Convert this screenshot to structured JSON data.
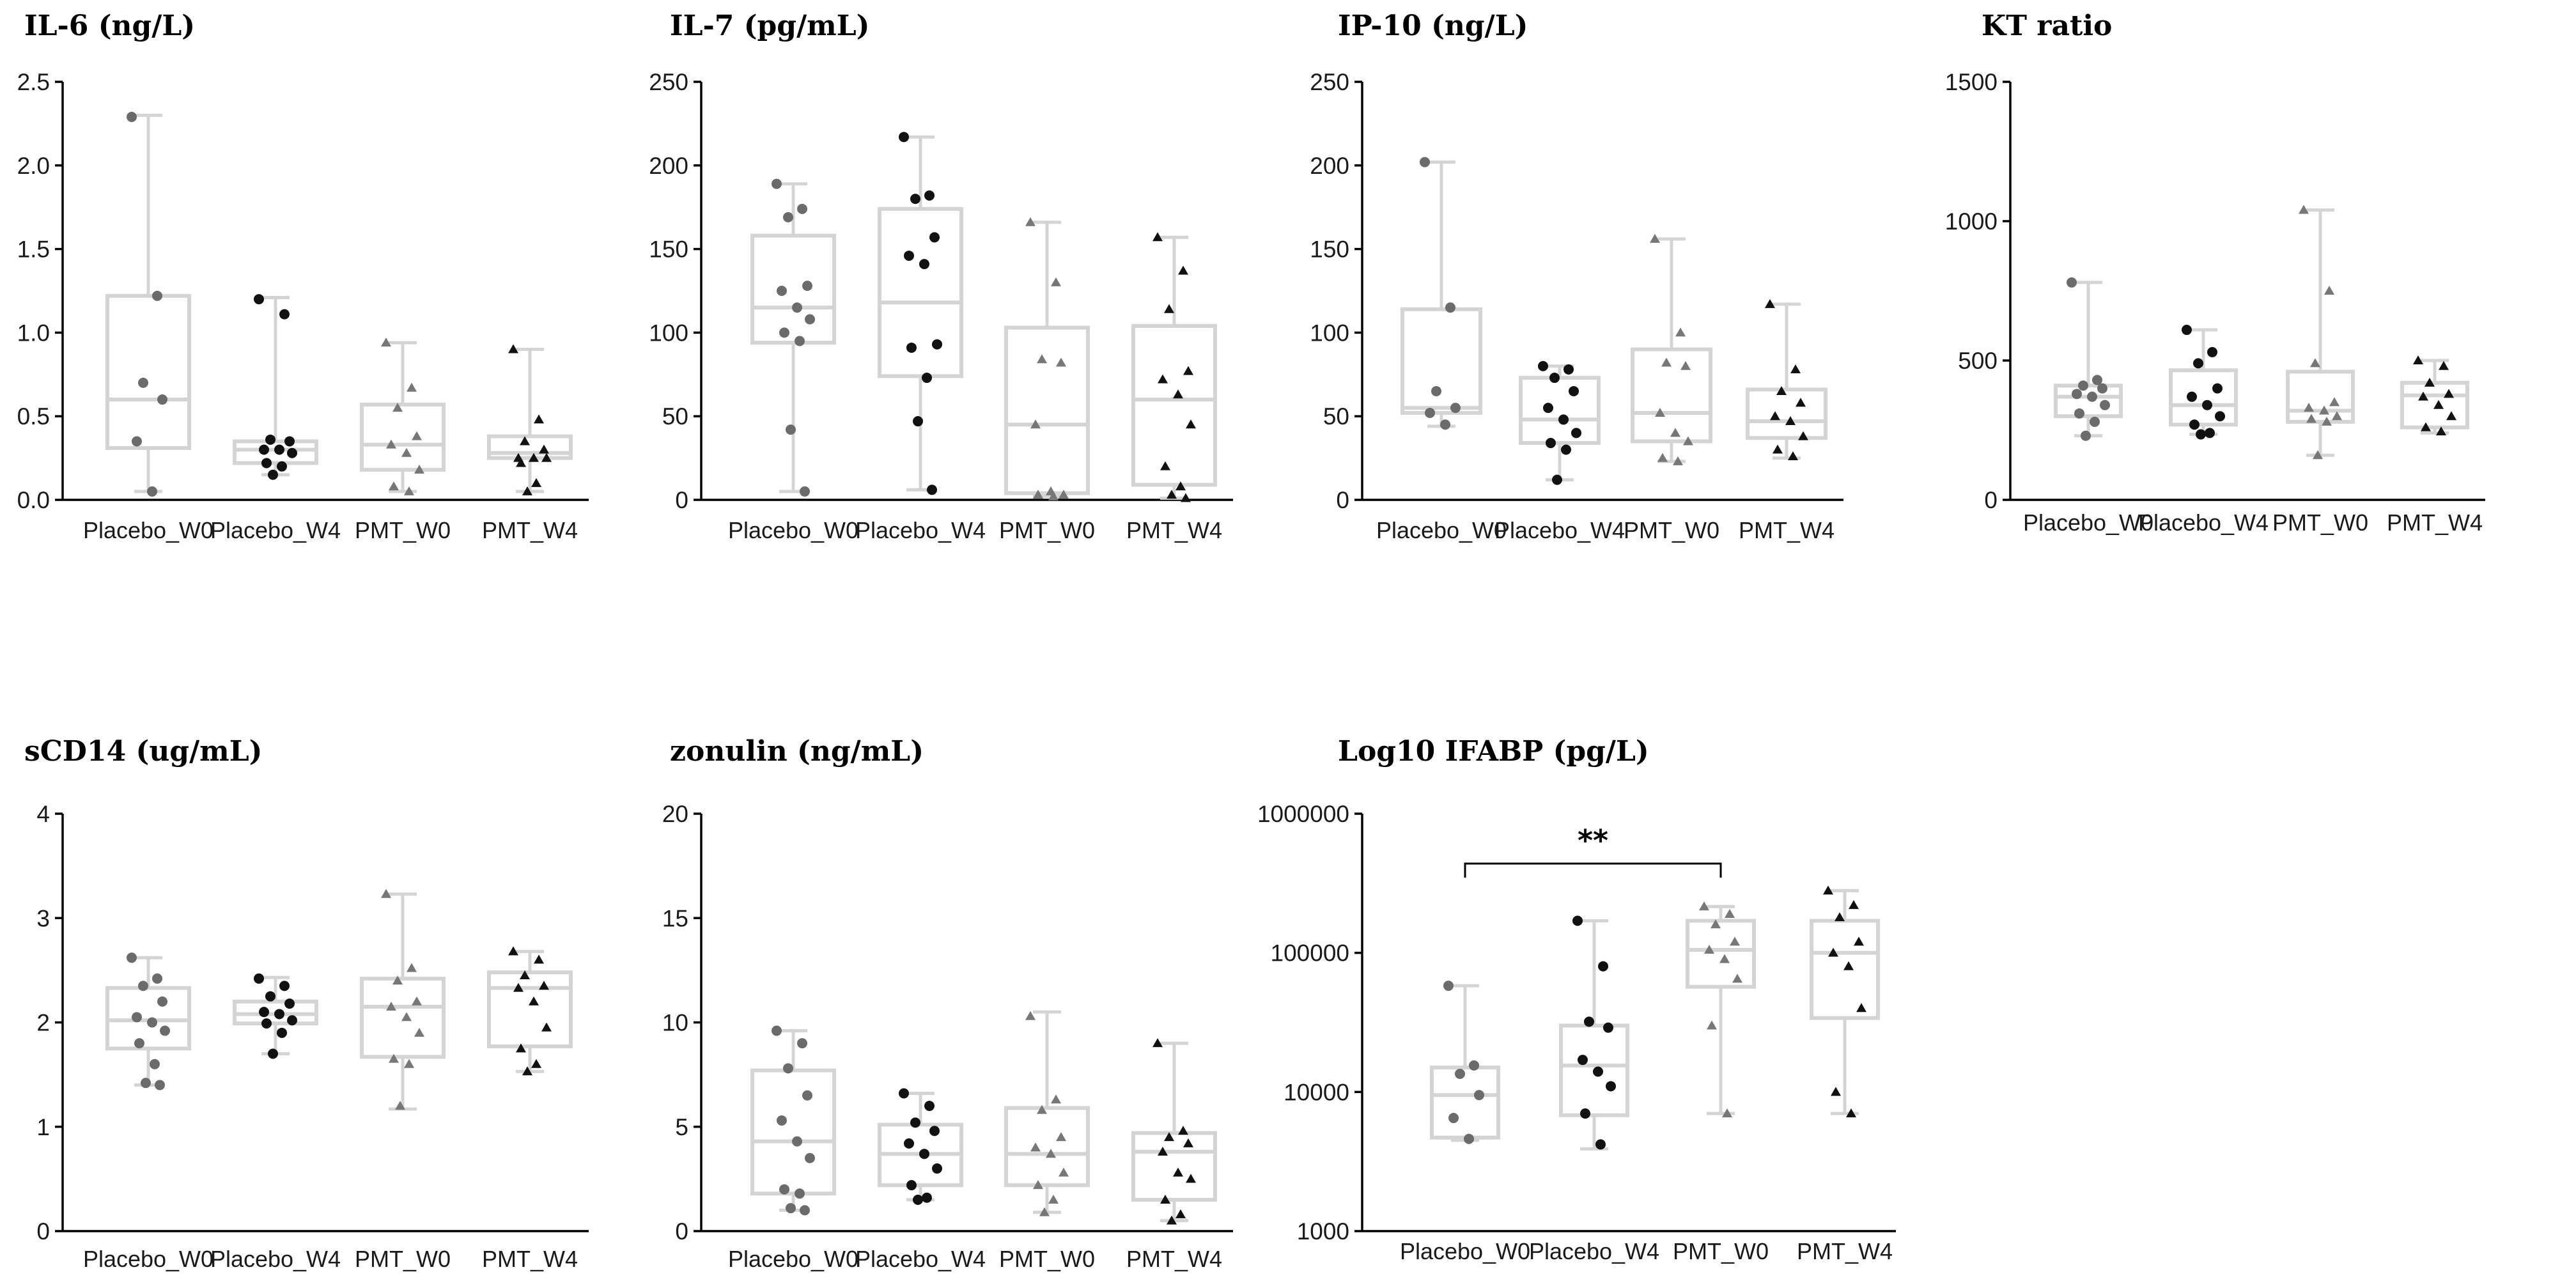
{
  "chart_data": [
    {
      "type": "box",
      "title": "IL-6 (ng/L)",
      "categories": [
        "Placebo_W0",
        "Placebo_W4",
        "PMT_W0",
        "PMT_W4"
      ],
      "yscale": "linear",
      "ylim": [
        0,
        2.5
      ],
      "yticks": [
        0,
        0.5,
        1.0,
        1.5,
        2.0,
        2.5
      ],
      "ytick_labels": [
        "0.0",
        "0.5",
        "1.0",
        "1.5",
        "2.0",
        "2.5"
      ],
      "groups": [
        {
          "category": "Placebo_W0",
          "marker": "circle",
          "color": "#6b6b6b",
          "min": 0.05,
          "q1": 0.31,
          "median": 0.6,
          "q3": 1.22,
          "max": 2.3,
          "points": [
            2.29,
            1.22,
            0.7,
            0.6,
            0.35,
            0.05
          ]
        },
        {
          "category": "Placebo_W4",
          "marker": "circle",
          "color": "#111111",
          "min": 0.15,
          "q1": 0.22,
          "median": 0.3,
          "q3": 0.35,
          "max": 1.21,
          "points": [
            1.2,
            1.11,
            0.36,
            0.35,
            0.3,
            0.3,
            0.28,
            0.22,
            0.2,
            0.15
          ]
        },
        {
          "category": "PMT_W0",
          "marker": "triangle",
          "color": "#777777",
          "min": 0.05,
          "q1": 0.18,
          "median": 0.33,
          "q3": 0.57,
          "max": 0.94,
          "points": [
            0.94,
            0.67,
            0.55,
            0.38,
            0.33,
            0.28,
            0.18,
            0.08,
            0.05
          ]
        },
        {
          "category": "PMT_W4",
          "marker": "triangle",
          "color": "#111111",
          "min": 0.05,
          "q1": 0.25,
          "median": 0.28,
          "q3": 0.38,
          "max": 0.9,
          "points": [
            0.9,
            0.48,
            0.35,
            0.3,
            0.25,
            0.25,
            0.25,
            0.22,
            0.1,
            0.05
          ]
        }
      ]
    },
    {
      "type": "box",
      "title": "IL-7 (pg/mL)",
      "categories": [
        "Placebo_W0",
        "Placebo_W4",
        "PMT_W0",
        "PMT_W4"
      ],
      "yscale": "linear",
      "ylim": [
        0,
        250
      ],
      "yticks": [
        0,
        50,
        100,
        150,
        200,
        250
      ],
      "ytick_labels": [
        "0",
        "50",
        "100",
        "150",
        "200",
        "250"
      ],
      "groups": [
        {
          "category": "Placebo_W0",
          "marker": "circle",
          "color": "#6b6b6b",
          "min": 5,
          "q1": 94,
          "median": 115,
          "q3": 158,
          "max": 189,
          "points": [
            189,
            174,
            169,
            128,
            125,
            115,
            108,
            100,
            95,
            42,
            5
          ]
        },
        {
          "category": "Placebo_W4",
          "marker": "circle",
          "color": "#111111",
          "min": 6,
          "q1": 74,
          "median": 118,
          "q3": 174,
          "max": 217,
          "points": [
            217,
            182,
            180,
            157,
            146,
            141,
            93,
            91,
            73,
            47,
            6
          ]
        },
        {
          "category": "PMT_W0",
          "marker": "triangle",
          "color": "#777777",
          "min": 2,
          "q1": 4,
          "median": 45,
          "q3": 103,
          "max": 166,
          "points": [
            166,
            130,
            84,
            82,
            45,
            5,
            3,
            3,
            2
          ]
        },
        {
          "category": "PMT_W4",
          "marker": "triangle",
          "color": "#111111",
          "min": 1,
          "q1": 9,
          "median": 60,
          "q3": 104,
          "max": 157,
          "points": [
            157,
            137,
            114,
            77,
            72,
            63,
            45,
            20,
            8,
            3,
            1
          ]
        }
      ]
    },
    {
      "type": "box",
      "title": "IP-10 (ng/L)",
      "categories": [
        "Placebo_W0",
        "Placebo_W4",
        "PMT_W0",
        "PMT_W4"
      ],
      "yscale": "linear",
      "ylim": [
        0,
        250
      ],
      "yticks": [
        0,
        50,
        100,
        150,
        200,
        250
      ],
      "ytick_labels": [
        "0",
        "50",
        "100",
        "150",
        "200",
        "250"
      ],
      "groups": [
        {
          "category": "Placebo_W0",
          "marker": "circle",
          "color": "#6b6b6b",
          "min": 44,
          "q1": 52,
          "median": 55,
          "q3": 114,
          "max": 202,
          "points": [
            202,
            115,
            65,
            55,
            52,
            45
          ]
        },
        {
          "category": "Placebo_W4",
          "marker": "circle",
          "color": "#111111",
          "min": 12,
          "q1": 34,
          "median": 48,
          "q3": 73,
          "max": 80,
          "points": [
            80,
            78,
            73,
            65,
            55,
            48,
            40,
            34,
            30,
            12
          ]
        },
        {
          "category": "PMT_W0",
          "marker": "triangle",
          "color": "#777777",
          "min": 23,
          "q1": 35,
          "median": 52,
          "q3": 90,
          "max": 156,
          "points": [
            156,
            100,
            82,
            80,
            52,
            40,
            35,
            25,
            23
          ]
        },
        {
          "category": "PMT_W4",
          "marker": "triangle",
          "color": "#111111",
          "min": 25,
          "q1": 37,
          "median": 47,
          "q3": 66,
          "max": 117,
          "points": [
            117,
            78,
            65,
            58,
            50,
            47,
            38,
            30,
            26
          ]
        }
      ]
    },
    {
      "type": "box",
      "title": "KT ratio",
      "categories": [
        "Placebo_W0",
        "Placebo_W4",
        "PMT_W0",
        "PMT_W4"
      ],
      "yscale": "linear",
      "ylim": [
        0,
        1500
      ],
      "yticks": [
        0,
        500,
        1000,
        1500
      ],
      "ytick_labels": [
        "0",
        "500",
        "1000",
        "1500"
      ],
      "groups": [
        {
          "category": "Placebo_W0",
          "marker": "circle",
          "color": "#6b6b6b",
          "min": 230,
          "q1": 300,
          "median": 370,
          "q3": 410,
          "max": 780,
          "points": [
            780,
            430,
            410,
            400,
            380,
            370,
            340,
            310,
            280,
            230
          ]
        },
        {
          "category": "Placebo_W4",
          "marker": "circle",
          "color": "#111111",
          "min": 235,
          "q1": 270,
          "median": 340,
          "q3": 465,
          "max": 610,
          "points": [
            610,
            530,
            490,
            400,
            370,
            340,
            300,
            270,
            240,
            235
          ]
        },
        {
          "category": "PMT_W0",
          "marker": "triangle",
          "color": "#777777",
          "min": 160,
          "q1": 280,
          "median": 320,
          "q3": 460,
          "max": 1040,
          "points": [
            1040,
            750,
            490,
            350,
            330,
            320,
            300,
            290,
            280,
            160
          ]
        },
        {
          "category": "PMT_W4",
          "marker": "triangle",
          "color": "#111111",
          "min": 240,
          "q1": 260,
          "median": 375,
          "q3": 420,
          "max": 500,
          "points": [
            500,
            480,
            420,
            380,
            370,
            340,
            300,
            260,
            245
          ]
        }
      ]
    },
    {
      "type": "box",
      "title": "sCD14 (ug/mL)",
      "categories": [
        "Placebo_W0",
        "Placebo_W4",
        "PMT_W0",
        "PMT_W4"
      ],
      "yscale": "linear",
      "ylim": [
        0,
        4
      ],
      "yticks": [
        0,
        1,
        2,
        3,
        4
      ],
      "ytick_labels": [
        "0",
        "1",
        "2",
        "3",
        "4"
      ],
      "groups": [
        {
          "category": "Placebo_W0",
          "marker": "circle",
          "color": "#6b6b6b",
          "min": 1.4,
          "q1": 1.75,
          "median": 2.02,
          "q3": 2.33,
          "max": 2.62,
          "points": [
            2.62,
            2.42,
            2.35,
            2.2,
            2.05,
            2.0,
            1.92,
            1.8,
            1.6,
            1.42,
            1.4
          ]
        },
        {
          "category": "Placebo_W4",
          "marker": "circle",
          "color": "#111111",
          "min": 1.7,
          "q1": 1.99,
          "median": 2.08,
          "q3": 2.2,
          "max": 2.43,
          "points": [
            2.42,
            2.35,
            2.25,
            2.18,
            2.1,
            2.08,
            2.02,
            1.99,
            1.9,
            1.7
          ]
        },
        {
          "category": "PMT_W0",
          "marker": "triangle",
          "color": "#777777",
          "min": 1.17,
          "q1": 1.67,
          "median": 2.15,
          "q3": 2.42,
          "max": 3.23,
          "points": [
            3.23,
            2.52,
            2.4,
            2.2,
            2.15,
            2.05,
            1.9,
            1.65,
            1.6,
            1.2
          ]
        },
        {
          "category": "PMT_W4",
          "marker": "triangle",
          "color": "#111111",
          "min": 1.53,
          "q1": 1.77,
          "median": 2.33,
          "q3": 2.48,
          "max": 2.68,
          "points": [
            2.68,
            2.6,
            2.45,
            2.35,
            2.33,
            2.2,
            1.95,
            1.75,
            1.6,
            1.53
          ]
        }
      ]
    },
    {
      "type": "box",
      "title": "zonulin (ng/mL)",
      "categories": [
        "Placebo_W0",
        "Placebo_W4",
        "PMT_W0",
        "PMT_W4"
      ],
      "yscale": "linear",
      "ylim": [
        0,
        20
      ],
      "yticks": [
        0,
        5,
        10,
        15,
        20
      ],
      "ytick_labels": [
        "0",
        "5",
        "10",
        "15",
        "20"
      ],
      "groups": [
        {
          "category": "Placebo_W0",
          "marker": "circle",
          "color": "#6b6b6b",
          "min": 1,
          "q1": 1.8,
          "median": 4.3,
          "q3": 7.7,
          "max": 9.6,
          "points": [
            9.6,
            9.0,
            7.8,
            6.5,
            5.3,
            4.3,
            3.5,
            2.0,
            1.8,
            1.1,
            1.0
          ]
        },
        {
          "category": "Placebo_W4",
          "marker": "circle",
          "color": "#111111",
          "min": 1.5,
          "q1": 2.2,
          "median": 3.7,
          "q3": 5.1,
          "max": 6.6,
          "points": [
            6.6,
            6.0,
            5.2,
            4.8,
            4.2,
            3.7,
            3.0,
            2.2,
            1.6,
            1.5
          ]
        },
        {
          "category": "PMT_W0",
          "marker": "triangle",
          "color": "#777777",
          "min": 0.9,
          "q1": 2.2,
          "median": 3.7,
          "q3": 5.9,
          "max": 10.5,
          "points": [
            10.3,
            6.3,
            5.8,
            4.5,
            4.0,
            3.7,
            2.8,
            2.2,
            1.5,
            0.9
          ]
        },
        {
          "category": "PMT_W4",
          "marker": "triangle",
          "color": "#111111",
          "min": 0.5,
          "q1": 1.5,
          "median": 3.8,
          "q3": 4.7,
          "max": 9.0,
          "points": [
            9.0,
            4.8,
            4.5,
            4.2,
            3.8,
            2.8,
            2.5,
            1.5,
            0.8,
            0.5
          ]
        }
      ]
    },
    {
      "type": "box",
      "title": "Log10 IFABP (pg/L)",
      "categories": [
        "Placebo_W0",
        "Placebo_W4",
        "PMT_W0",
        "PMT_W4"
      ],
      "yscale": "log",
      "ylim": [
        1000,
        1000000
      ],
      "yticks": [
        1000,
        10000,
        100000,
        1000000
      ],
      "ytick_labels": [
        "1000",
        "10000",
        "100000",
        "1000000"
      ],
      "significance": {
        "from": "Placebo_W0",
        "to": "PMT_W0",
        "label": "**"
      },
      "groups": [
        {
          "category": "Placebo_W0",
          "marker": "circle",
          "color": "#6b6b6b",
          "min": 4500,
          "q1": 4700,
          "median": 9500,
          "q3": 15000,
          "max": 58000,
          "points": [
            58000,
            15500,
            13500,
            9500,
            6500,
            4600
          ]
        },
        {
          "category": "Placebo_W4",
          "marker": "circle",
          "color": "#111111",
          "min": 3900,
          "q1": 6800,
          "median": 15500,
          "q3": 30000,
          "max": 170000,
          "points": [
            170000,
            80000,
            32000,
            29000,
            17000,
            14000,
            11000,
            7000,
            4200
          ]
        },
        {
          "category": "PMT_W0",
          "marker": "triangle",
          "color": "#777777",
          "min": 7000,
          "q1": 57000,
          "median": 105000,
          "q3": 170000,
          "max": 215000,
          "points": [
            215000,
            190000,
            160000,
            120000,
            105000,
            90000,
            65000,
            30000,
            7000
          ]
        },
        {
          "category": "PMT_W4",
          "marker": "triangle",
          "color": "#111111",
          "min": 7000,
          "q1": 34000,
          "median": 100000,
          "q3": 170000,
          "max": 280000,
          "points": [
            280000,
            220000,
            180000,
            120000,
            100000,
            80000,
            40000,
            10000,
            7000
          ]
        }
      ]
    }
  ]
}
